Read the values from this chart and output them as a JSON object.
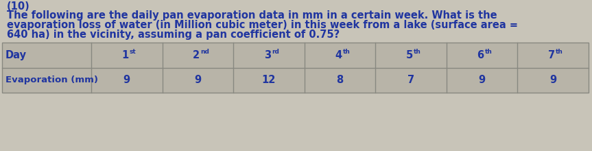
{
  "question_line1": "(10)",
  "question_line2": "The following are the daily pan evaporation data in mm in a certain week. What is the",
  "question_line3": "evaporation loss of water (in Million cubic meter) in this week from a lake (surface area =",
  "question_line4": "640 ha) in the vicinity, assuming a pan coefficient of 0.75?",
  "table_row1_label": "Day",
  "table_row2_label": "Evaporation (mm)",
  "col_headers": [
    "1st",
    "2nd",
    "3rd",
    "4th",
    "5th",
    "6th",
    "7th"
  ],
  "col_superscripts": [
    "st",
    "nd",
    "rd",
    "th",
    "th",
    "th",
    "th"
  ],
  "col_numbers": [
    "1",
    "2",
    "3",
    "4",
    "5",
    "6",
    "7"
  ],
  "values": [
    9,
    9,
    12,
    8,
    7,
    9,
    9
  ],
  "text_color": "#2035a0",
  "bg_color": "#c8c4b8",
  "cell_bg": "#b8b4a8",
  "line_color": "#888880",
  "font_size_q": 10.5,
  "font_size_table": 10.5
}
